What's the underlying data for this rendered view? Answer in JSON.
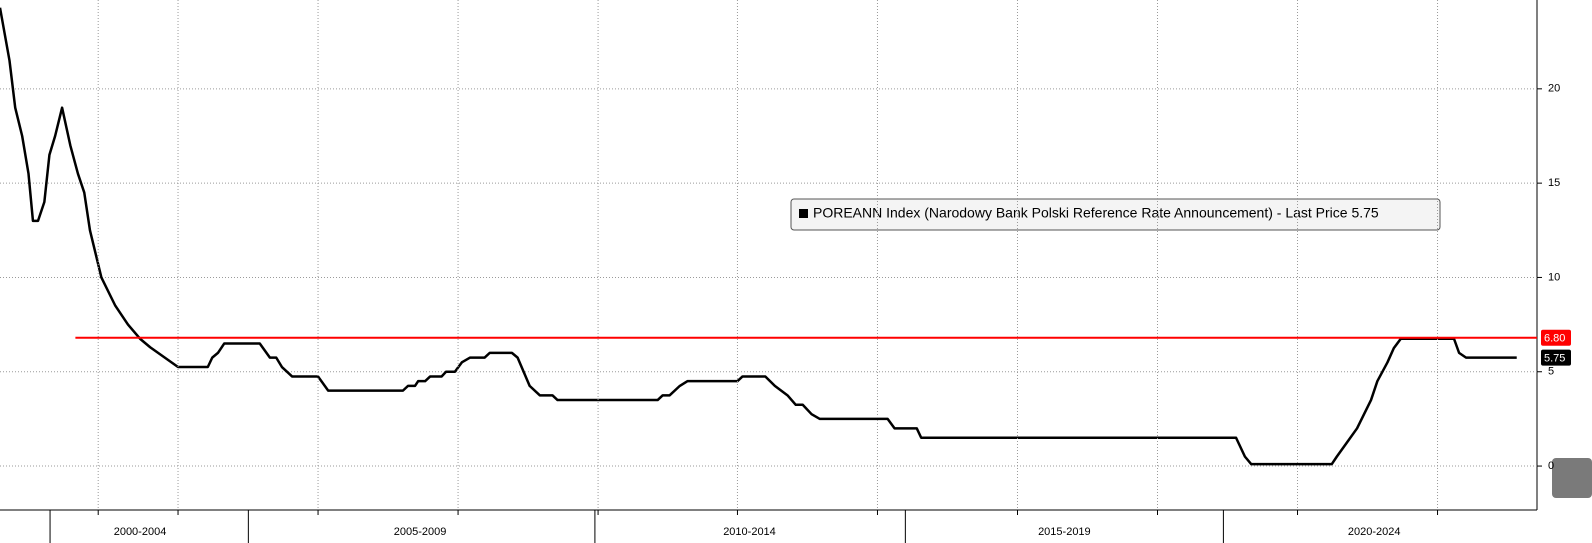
{
  "chart_data": {
    "type": "line",
    "legend": "POREANN Index (Narodowy Bank Polski Reference Rate Announcement) - Last Price 5.75",
    "series": [
      {
        "color": "#000000",
        "x": [
          2000.69,
          2000.84,
          2000.93,
          2001.04,
          2001.14,
          2001.21,
          2001.29,
          2001.39,
          2001.47,
          2001.56,
          2001.67,
          2001.8,
          2001.92,
          2002.02,
          2002.11,
          2002.29,
          2002.51,
          2002.71,
          2002.9,
          2003.06,
          2003.5,
          2003.97,
          2004.04,
          2004.13,
          2004.23,
          2004.79,
          2004.95,
          2005.05,
          2005.14,
          2005.3,
          2005.71,
          2005.87,
          2007.05,
          2007.13,
          2007.24,
          2007.29,
          2007.4,
          2007.48,
          2007.66,
          2007.73,
          2007.87,
          2007.98,
          2008.11,
          2008.34,
          2008.42,
          2008.77,
          2008.86,
          2009.05,
          2009.21,
          2009.41,
          2009.49,
          2011.07,
          2011.15,
          2011.26,
          2011.42,
          2011.54,
          2012.33,
          2012.41,
          2012.77,
          2012.92,
          2013.12,
          2013.25,
          2013.36,
          2013.5,
          2013.63,
          2014.7,
          2014.81,
          2015.16,
          2015.23,
          2020.2,
          2020.34,
          2020.44,
          2021.71,
          2021.79,
          2021.95,
          2022.11,
          2022.22,
          2022.33,
          2022.43,
          2022.59,
          2022.69,
          2022.8,
          2023.64,
          2023.72,
          2023.83,
          2024.63
        ],
        "values": [
          24.3,
          21.5,
          19,
          17.5,
          15.5,
          13,
          13,
          14,
          16.5,
          17.5,
          19,
          17,
          15.5,
          14.5,
          12.5,
          10,
          8.5,
          7.5,
          6.75,
          6.3,
          5.25,
          5.25,
          5.75,
          6,
          6.5,
          6.5,
          5.75,
          5.75,
          5.25,
          4.75,
          4.75,
          4,
          4,
          4.25,
          4.25,
          4.5,
          4.5,
          4.75,
          4.75,
          5,
          5,
          5.5,
          5.75,
          5.75,
          6,
          6,
          5.75,
          4.25,
          3.75,
          3.75,
          3.5,
          3.5,
          3.75,
          3.75,
          4.25,
          4.5,
          4.5,
          4.75,
          4.75,
          4.25,
          3.75,
          3.25,
          3.25,
          2.75,
          2.5,
          2.5,
          2,
          2,
          1.5,
          1.5,
          0.5,
          0.1,
          0.1,
          0.5,
          1.25,
          2,
          2.75,
          3.5,
          4.5,
          5.5,
          6.25,
          6.75,
          6.75,
          6,
          5.75,
          5.75
        ]
      }
    ],
    "last_label": {
      "value": 5.75,
      "label": "5.75"
    },
    "hline": {
      "value": 6.8,
      "label": "6.80",
      "color": "#ff0000",
      "start": 2001.88
    },
    "xlim": [
      2000.69,
      2024.95
    ],
    "xticks": [
      {
        "value": 2002.9,
        "label": "2000-2004"
      },
      {
        "value": 2007.32,
        "label": "2005-2009"
      },
      {
        "value": 2012.52,
        "label": "2010-2014"
      },
      {
        "value": 2017.49,
        "label": "2015-2019"
      },
      {
        "value": 2022.38,
        "label": "2020-2024"
      }
    ],
    "xgroup_bounds": [
      2001.48,
      2004.61,
      2010.08,
      2014.98,
      2020.0
    ],
    "xgrid": [
      2002.24,
      2003.5,
      2005.71,
      2007.92,
      2010.13,
      2012.33,
      2014.54,
      2016.75,
      2018.96,
      2021.17,
      2023.38
    ],
    "ylim": [
      -2.33,
      24.71
    ],
    "yticks": [
      0,
      5,
      10,
      15,
      20
    ],
    "grid": true
  }
}
